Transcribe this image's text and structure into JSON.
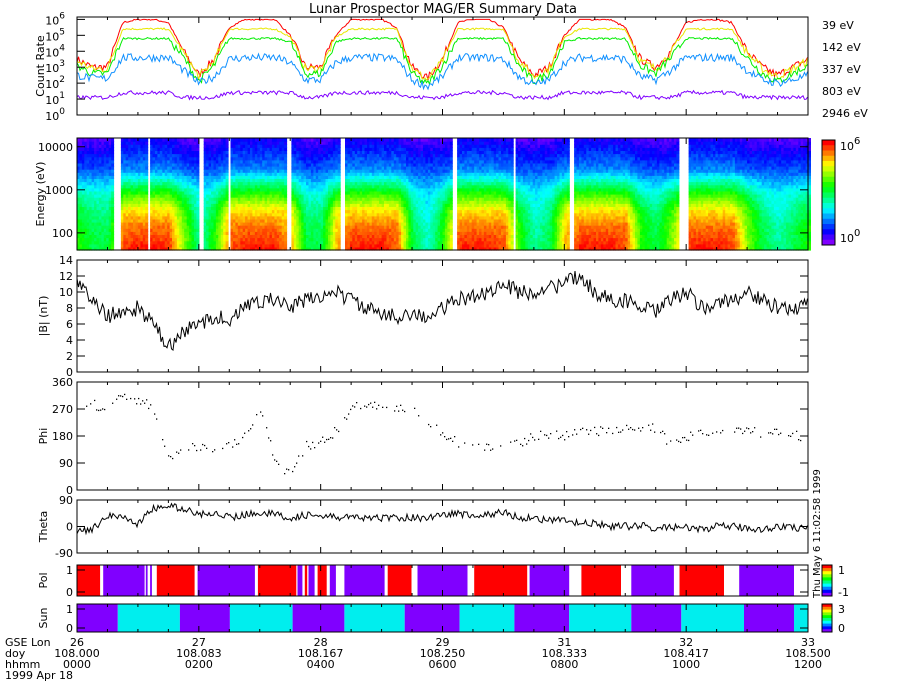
{
  "title": "Lunar Prospector MAG/ER Summary Data",
  "timestamp_vertical": "Thu May 6 11:02:58 1999",
  "colors": {
    "39": "#ff0000",
    "142": "#e8e800",
    "337": "#00ee00",
    "803": "#1090ff",
    "2946": "#8000ff",
    "pol_pos": "#ff0000",
    "pol_neg": "#8000ff",
    "sun_day": "#00eeee",
    "sun_night": "#8000ff"
  },
  "x_axis": {
    "row_labels": [
      "GSE Lon",
      "doy",
      "hhmm",
      "1999 Apr 18"
    ],
    "hours": [
      0,
      2,
      4,
      6,
      8,
      10,
      12
    ],
    "gse_lon": [
      "26",
      "27",
      "28",
      "29",
      "31",
      "32",
      "33"
    ],
    "doy": [
      "108.000",
      "108.083",
      "108.167",
      "108.250",
      "108.333",
      "108.417",
      "108.500"
    ],
    "hhmm": [
      "0000",
      "0200",
      "0400",
      "0600",
      "0800",
      "1000",
      "1200"
    ]
  },
  "chart_data": [
    {
      "id": "count_rate",
      "type": "line",
      "ylabel": "Count Rate",
      "yscale": "log",
      "ylim_exp": [
        0,
        6
      ],
      "ytick_exponents": [
        0,
        1,
        2,
        3,
        4,
        5,
        6
      ],
      "ytick_base": "10",
      "x_hours_step": 0.25,
      "series": [
        {
          "name": "39 eV",
          "energy": 39,
          "log10_values": [
            3.5,
            3.0,
            3.0,
            5.8,
            6,
            6,
            5.8,
            4,
            2.5,
            3.5,
            5.5,
            6,
            6,
            6,
            5,
            3,
            3,
            5,
            6,
            6,
            6,
            5.5,
            3,
            2.3,
            3.5,
            5.8,
            6,
            6,
            5.5,
            3.5,
            2.5,
            3,
            5,
            6,
            6,
            6,
            5.5,
            3.5,
            3,
            4,
            5.8,
            6,
            6,
            5.8,
            4,
            3,
            2.5,
            3,
            3.5
          ]
        },
        {
          "name": "142 eV",
          "energy": 142,
          "log10_values": [
            3.4,
            2.9,
            2.9,
            5.4,
            5.4,
            5.4,
            5.4,
            3.9,
            2.4,
            3.4,
            5.4,
            5.4,
            5.4,
            5.4,
            4.9,
            2.9,
            2.9,
            4.9,
            5.4,
            5.4,
            5.4,
            5.4,
            2.9,
            2.2,
            3.4,
            5.4,
            5.4,
            5.4,
            5.4,
            3.4,
            2.4,
            2.9,
            4.9,
            5.4,
            5.4,
            5.4,
            5.4,
            3.4,
            2.9,
            3.9,
            5.4,
            5.4,
            5.4,
            5.4,
            3.9,
            2.9,
            2.4,
            2.9,
            3.4
          ]
        },
        {
          "name": "337 eV",
          "energy": 337,
          "log10_values": [
            3.1,
            2.6,
            2.6,
            4.8,
            4.8,
            4.8,
            4.8,
            3.6,
            2.1,
            3.1,
            4.8,
            4.8,
            4.8,
            4.8,
            4.6,
            2.6,
            2.6,
            4.6,
            4.8,
            4.8,
            4.8,
            4.8,
            2.6,
            1.9,
            3.1,
            4.8,
            4.8,
            4.8,
            4.8,
            3.1,
            2.1,
            2.6,
            4.6,
            4.8,
            4.8,
            4.8,
            4.8,
            3.1,
            2.6,
            3.6,
            4.8,
            4.8,
            4.8,
            4.8,
            3.6,
            2.6,
            2.1,
            2.6,
            3.1
          ]
        },
        {
          "name": "803 eV",
          "energy": 803,
          "log10_values": [
            2.5,
            2.3,
            2.3,
            3.6,
            3.6,
            3.6,
            3.6,
            2.8,
            2.0,
            2.4,
            3.5,
            3.6,
            3.6,
            3.6,
            3.3,
            2.2,
            2.2,
            3.3,
            3.6,
            3.6,
            3.6,
            3.5,
            2.2,
            1.8,
            2.4,
            3.6,
            3.6,
            3.6,
            3.5,
            2.4,
            1.9,
            2.2,
            3.3,
            3.6,
            3.6,
            3.6,
            3.5,
            2.4,
            2.2,
            2.8,
            3.6,
            3.6,
            3.6,
            3.6,
            2.8,
            2.2,
            2.0,
            2.2,
            2.5
          ]
        },
        {
          "name": "2946 eV",
          "energy": 2946,
          "log10_values": [
            1.1,
            1.1,
            1.1,
            1.4,
            1.4,
            1.4,
            1.4,
            1.1,
            1.1,
            1.1,
            1.4,
            1.4,
            1.4,
            1.4,
            1.4,
            1.1,
            1.1,
            1.4,
            1.4,
            1.4,
            1.4,
            1.4,
            1.1,
            1.1,
            1.1,
            1.4,
            1.4,
            1.4,
            1.4,
            1.1,
            1.1,
            1.1,
            1.4,
            1.4,
            1.4,
            1.4,
            1.4,
            1.1,
            1.1,
            1.1,
            1.4,
            1.4,
            1.4,
            1.4,
            1.1,
            1.1,
            1.1,
            1.1,
            1.1
          ]
        }
      ]
    },
    {
      "id": "spectrogram",
      "type": "heatmap",
      "ylabel": "Energy (eV)",
      "yscale": "log",
      "ylim": [
        40,
        16000
      ],
      "yticks": [
        "100",
        "1000",
        "10000"
      ],
      "ytick_values": [
        100,
        1000,
        10000
      ],
      "colorbar_exp": [
        0,
        6
      ],
      "colorbar_labels": {
        "base": "10",
        "low_exp": "0",
        "high_exp": "6"
      },
      "data_gaps_hours": [
        [
          0.62,
          0.74
        ],
        [
          1.16,
          1.21
        ],
        [
          2.02,
          2.1
        ],
        [
          2.48,
          2.54
        ],
        [
          3.46,
          3.52
        ],
        [
          4.31,
          4.41
        ],
        [
          6.16,
          6.25
        ],
        [
          7.15,
          7.21
        ],
        [
          8.08,
          8.16
        ],
        [
          9.89,
          10.02
        ]
      ],
      "source": "count_rate"
    },
    {
      "id": "bmag",
      "type": "line",
      "ylabel": "|B| (nT)",
      "ylim": [
        0,
        14
      ],
      "yticks": [
        "0",
        "2",
        "4",
        "6",
        "8",
        "10",
        "12",
        "14"
      ],
      "x_hours_step": 0.25,
      "values": [
        11,
        9,
        7,
        7.5,
        8,
        6,
        3,
        5,
        6,
        7,
        6.5,
        8,
        9,
        9,
        8,
        9,
        9.5,
        10,
        9,
        8,
        7,
        7,
        7.5,
        6.5,
        8,
        9,
        9.5,
        10,
        11,
        10,
        10,
        10.5,
        11,
        12,
        10,
        9,
        9,
        8,
        7.5,
        9,
        10,
        8,
        8.5,
        9,
        10,
        9,
        8,
        7.5,
        9
      ]
    },
    {
      "id": "phi",
      "type": "scatter",
      "ylabel": "Phi",
      "ylim": [
        0,
        360
      ],
      "yticks": [
        "0",
        "90",
        "180",
        "270",
        "360"
      ],
      "x_hours_step": 0.25,
      "values": [
        300,
        290,
        265,
        320,
        300,
        280,
        100,
        150,
        140,
        140,
        150,
        180,
        270,
        100,
        50,
        150,
        160,
        200,
        280,
        290,
        280,
        270,
        270,
        230,
        190,
        160,
        150,
        145,
        140,
        160,
        180,
        190,
        180,
        200,
        200,
        195,
        210,
        200,
        210,
        150,
        180,
        190,
        200,
        210,
        200,
        190,
        190,
        185,
        175
      ]
    },
    {
      "id": "theta",
      "type": "line",
      "ylabel": "Theta",
      "ylim": [
        -90,
        90
      ],
      "yticks": [
        "-90",
        "0",
        "90"
      ],
      "x_hours_step": 0.25,
      "values": [
        -20,
        -10,
        40,
        30,
        10,
        60,
        70,
        60,
        40,
        50,
        30,
        40,
        50,
        40,
        30,
        40,
        35,
        30,
        35,
        25,
        30,
        30,
        30,
        30,
        40,
        45,
        35,
        40,
        50,
        30,
        30,
        20,
        20,
        10,
        10,
        0,
        0,
        5,
        -10,
        0,
        -5,
        -10,
        0,
        0,
        -5,
        -10,
        0,
        -5,
        0
      ]
    },
    {
      "id": "pol",
      "type": "bands",
      "ylabel": "Pol",
      "yticks": [
        "0",
        "1"
      ],
      "colorbar_labels": [
        "-1",
        "1"
      ],
      "segments": [
        [
          0,
          0.38,
          1
        ],
        [
          0.43,
          1.11,
          -1
        ],
        [
          1.13,
          1.16,
          -1
        ],
        [
          1.2,
          1.23,
          -1
        ],
        [
          1.31,
          1.93,
          1
        ],
        [
          1.98,
          2.92,
          -1
        ],
        [
          2.97,
          3.6,
          1
        ],
        [
          3.62,
          3.7,
          -1
        ],
        [
          3.74,
          3.78,
          1
        ],
        [
          3.8,
          3.9,
          -1
        ],
        [
          3.95,
          4.1,
          1
        ],
        [
          4.15,
          4.25,
          -1
        ],
        [
          4.39,
          5.05,
          -1
        ],
        [
          5.1,
          5.49,
          1
        ],
        [
          5.59,
          6.41,
          -1
        ],
        [
          6.52,
          7.39,
          1
        ],
        [
          7.43,
          8.08,
          -1
        ],
        [
          8.28,
          8.93,
          1
        ],
        [
          9.1,
          9.8,
          -1
        ],
        [
          9.89,
          10.62,
          1
        ],
        [
          10.87,
          11.77,
          -1
        ]
      ]
    },
    {
      "id": "sun",
      "type": "bands",
      "ylabel": "Sun",
      "yticks": [
        "0",
        "1"
      ],
      "colorbar_labels": [
        "0",
        "3"
      ],
      "segments": [
        [
          0,
          0.67,
          0
        ],
        [
          0.67,
          1.69,
          2
        ],
        [
          1.69,
          2.51,
          0
        ],
        [
          2.51,
          3.54,
          2
        ],
        [
          3.54,
          4.39,
          0
        ],
        [
          4.39,
          5.38,
          2
        ],
        [
          5.38,
          6.28,
          0
        ],
        [
          6.28,
          7.18,
          2
        ],
        [
          7.18,
          8.08,
          0
        ],
        [
          8.08,
          9.1,
          2
        ],
        [
          9.1,
          9.92,
          0
        ],
        [
          9.92,
          10.95,
          2
        ],
        [
          10.95,
          11.77,
          0
        ],
        [
          11.77,
          12,
          2
        ]
      ]
    }
  ]
}
